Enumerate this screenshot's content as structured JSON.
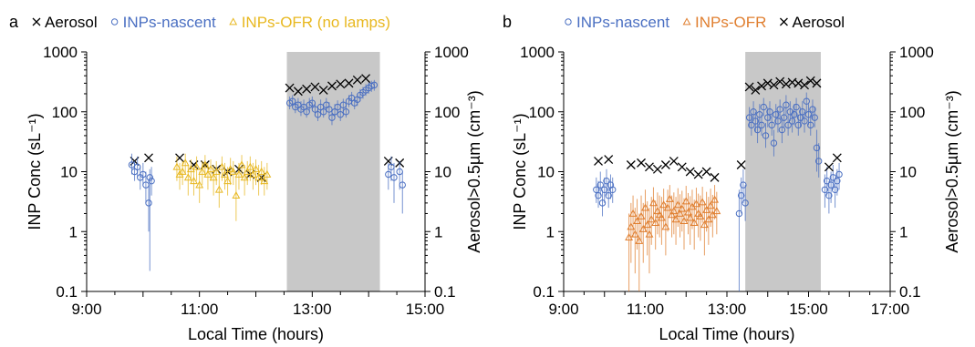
{
  "chart_data": [
    {
      "type": "scatter",
      "panel_label": "a",
      "xlabel": "Local Time (hours)",
      "ylabel": "INP Conc (sL⁻¹)",
      "ylabel_right": "Aerosol>0.5µm (cm⁻³)",
      "xlim": [
        9,
        15
      ],
      "x_ticks": [
        9,
        11,
        13,
        15
      ],
      "x_tick_labels": [
        "9:00",
        "11:00",
        "13:00",
        "15:00"
      ],
      "ylim": [
        0.1,
        1000
      ],
      "y_scale": "log",
      "y_tick_labels": [
        "0.1",
        "1",
        "10",
        "100",
        "1000"
      ],
      "y_ticks": [
        0.1,
        1,
        10,
        100,
        1000
      ],
      "y_right_ticks": [
        0.1,
        1,
        10,
        100,
        1000
      ],
      "y_right_tick_labels": [
        "0.1",
        "1",
        "10",
        "100",
        "1000"
      ],
      "shaded_region": [
        12.55,
        14.2
      ],
      "legend_placement": "top",
      "series": [
        {
          "name": "Aerosol",
          "marker": "x",
          "color": "#000000",
          "x": [
            9.85,
            10.1,
            10.65,
            10.9,
            11.1,
            11.3,
            11.5,
            11.7,
            11.9,
            12.1,
            12.6,
            12.75,
            12.9,
            13.05,
            13.2,
            13.35,
            13.5,
            13.65,
            13.8,
            13.95,
            14.35,
            14.55
          ],
          "y": [
            15,
            17,
            17,
            13,
            13,
            11,
            10,
            11,
            9,
            8,
            250,
            220,
            240,
            260,
            230,
            270,
            290,
            300,
            340,
            360,
            15,
            14
          ]
        },
        {
          "name": "INPs-nascent",
          "marker": "circle",
          "color": "#4a6fc2",
          "x": [
            9.8,
            9.85,
            9.9,
            9.95,
            10.0,
            10.05,
            10.1,
            10.12,
            10.15,
            12.6,
            12.65,
            12.7,
            12.75,
            12.8,
            12.85,
            12.9,
            12.95,
            13.0,
            13.05,
            13.1,
            13.15,
            13.2,
            13.25,
            13.3,
            13.35,
            13.4,
            13.45,
            13.5,
            13.55,
            13.6,
            13.65,
            13.7,
            13.75,
            13.8,
            13.85,
            13.9,
            13.95,
            14.0,
            14.05,
            14.1,
            14.35,
            14.4,
            14.45,
            14.55,
            14.6
          ],
          "y": [
            13,
            10,
            12,
            8,
            9,
            6,
            3,
            8,
            7,
            140,
            150,
            120,
            130,
            110,
            120,
            100,
            130,
            140,
            110,
            90,
            120,
            100,
            130,
            110,
            80,
            100,
            120,
            90,
            130,
            100,
            150,
            170,
            140,
            160,
            190,
            210,
            230,
            250,
            270,
            280,
            9,
            12,
            8,
            10,
            6
          ],
          "err_low": [
            9,
            7,
            8,
            5,
            6,
            3,
            1,
            0.22,
            4,
            110,
            120,
            95,
            105,
            85,
            95,
            80,
            100,
            110,
            85,
            70,
            95,
            80,
            100,
            85,
            60,
            80,
            95,
            70,
            100,
            80,
            120,
            130,
            110,
            125,
            150,
            165,
            185,
            200,
            215,
            225,
            5,
            7,
            3,
            5,
            2
          ],
          "err_high": [
            20,
            15,
            18,
            12,
            14,
            10,
            6,
            11,
            12,
            180,
            190,
            160,
            170,
            150,
            160,
            135,
            170,
            180,
            145,
            120,
            160,
            135,
            170,
            145,
            110,
            135,
            155,
            120,
            165,
            130,
            190,
            215,
            180,
            200,
            240,
            260,
            290,
            310,
            330,
            340,
            14,
            18,
            14,
            15,
            10
          ]
        },
        {
          "name": "INPs-OFR (no lamps)",
          "marker": "triangle",
          "color": "#e8b820",
          "x": [
            10.6,
            10.65,
            10.7,
            10.75,
            10.8,
            10.85,
            10.9,
            10.95,
            11.0,
            11.05,
            11.1,
            11.15,
            11.2,
            11.25,
            11.3,
            11.35,
            11.4,
            11.45,
            11.5,
            11.55,
            11.6,
            11.65,
            11.7,
            11.75,
            11.8,
            11.85,
            11.9,
            11.95,
            12.0,
            12.05,
            12.1,
            12.15,
            12.2
          ],
          "y": [
            12,
            9,
            10,
            14,
            8,
            11,
            7,
            12,
            6,
            10,
            13,
            9,
            11,
            8,
            10,
            5,
            12,
            9,
            7,
            11,
            10,
            4,
            9,
            13,
            8,
            10,
            12,
            9,
            11,
            8,
            10,
            7,
            9
          ],
          "err_low": [
            7,
            5,
            6,
            9,
            4,
            7,
            4,
            7,
            3,
            6,
            8,
            5,
            7,
            4,
            6,
            2.5,
            7,
            5,
            4,
            6,
            6,
            1.5,
            5,
            8,
            4,
            6,
            7,
            5,
            6,
            4,
            6,
            4,
            5
          ],
          "err_high": [
            18,
            14,
            15,
            20,
            13,
            16,
            12,
            18,
            10,
            15,
            19,
            14,
            16,
            13,
            15,
            9,
            18,
            14,
            12,
            17,
            15,
            8,
            14,
            19,
            13,
            15,
            18,
            14,
            16,
            13,
            15,
            12,
            14
          ]
        }
      ]
    },
    {
      "type": "scatter",
      "panel_label": "b",
      "xlabel": "Local Time (hours)",
      "ylabel": "INP Conc (sL⁻¹)",
      "ylabel_right": "Aerosol>0.5µm (cm⁻³)",
      "xlim": [
        9,
        17
      ],
      "x_ticks": [
        9,
        11,
        13,
        15,
        17
      ],
      "x_tick_labels": [
        "9:00",
        "11:00",
        "13:00",
        "15:00",
        "17:00"
      ],
      "ylim": [
        0.1,
        1000
      ],
      "y_scale": "log",
      "y_tick_labels": [
        "0.1",
        "1",
        "10",
        "100",
        "1000"
      ],
      "y_ticks": [
        0.1,
        1,
        10,
        100,
        1000
      ],
      "y_right_ticks": [
        0.1,
        1,
        10,
        100,
        1000
      ],
      "y_right_tick_labels": [
        "0.1",
        "1",
        "10",
        "100",
        "1000"
      ],
      "shaded_region": [
        13.45,
        15.3
      ],
      "legend_placement": "top",
      "series": [
        {
          "name": "INPs-nascent",
          "marker": "circle",
          "color": "#4a6fc2",
          "x": [
            9.8,
            9.85,
            9.9,
            9.95,
            10.0,
            10.05,
            10.1,
            10.15,
            10.2,
            13.3,
            13.35,
            13.4,
            13.45,
            13.55,
            13.6,
            13.65,
            13.7,
            13.75,
            13.8,
            13.85,
            13.9,
            13.95,
            14.0,
            14.05,
            14.1,
            14.15,
            14.2,
            14.25,
            14.3,
            14.35,
            14.4,
            14.45,
            14.5,
            14.55,
            14.6,
            14.65,
            14.7,
            14.75,
            14.8,
            14.85,
            14.9,
            14.95,
            15.0,
            15.05,
            15.1,
            15.15,
            15.2,
            15.25,
            15.4,
            15.45,
            15.5,
            15.55,
            15.6,
            15.65,
            15.7,
            15.75
          ],
          "y": [
            5,
            4,
            6,
            3,
            5,
            7,
            4,
            6,
            5,
            2,
            4,
            6,
            3,
            80,
            60,
            100,
            70,
            50,
            90,
            60,
            120,
            40,
            80,
            100,
            60,
            30,
            90,
            70,
            110,
            50,
            80,
            130,
            60,
            100,
            70,
            90,
            120,
            60,
            80,
            100,
            70,
            150,
            90,
            60,
            110,
            80,
            25,
            15,
            5,
            7,
            4,
            6,
            8,
            5,
            7,
            9
          ],
          "err_low": [
            3,
            2.5,
            4,
            1.8,
            3,
            4,
            2.5,
            3.5,
            3,
            0.1,
            2,
            3,
            1.5,
            55,
            40,
            70,
            45,
            30,
            60,
            40,
            85,
            25,
            55,
            70,
            40,
            18,
            60,
            45,
            75,
            30,
            55,
            90,
            40,
            70,
            45,
            60,
            85,
            40,
            55,
            70,
            45,
            100,
            60,
            40,
            75,
            55,
            10,
            8,
            2.5,
            4,
            2,
            3,
            5,
            2.5,
            4,
            5
          ],
          "err_high": [
            8,
            7,
            10,
            5,
            8,
            11,
            7,
            9,
            8,
            5,
            8,
            11,
            6,
            120,
            90,
            150,
            100,
            80,
            135,
            90,
            170,
            65,
            120,
            150,
            90,
            50,
            135,
            105,
            160,
            80,
            120,
            190,
            90,
            150,
            105,
            135,
            170,
            90,
            120,
            150,
            100,
            210,
            135,
            90,
            160,
            120,
            50,
            30,
            9,
            12,
            7,
            10,
            13,
            8,
            11,
            14
          ]
        },
        {
          "name": "INPs-OFR",
          "marker": "triangle",
          "color": "#e07f30",
          "x": [
            10.6,
            10.65,
            10.7,
            10.75,
            10.8,
            10.85,
            10.9,
            10.95,
            11.0,
            11.05,
            11.1,
            11.15,
            11.2,
            11.25,
            11.3,
            11.35,
            11.4,
            11.45,
            11.5,
            11.55,
            11.6,
            11.65,
            11.7,
            11.75,
            11.8,
            11.85,
            11.9,
            11.95,
            12.0,
            12.05,
            12.1,
            12.15,
            12.2,
            12.25,
            12.3,
            12.35,
            12.4,
            12.45,
            12.5,
            12.55,
            12.6,
            12.65,
            12.7,
            12.75
          ],
          "y": [
            0.8,
            1.2,
            2,
            0.9,
            1.5,
            0.7,
            1.8,
            1.1,
            2.5,
            1.3,
            0.9,
            1.6,
            3,
            1.4,
            2.2,
            1.9,
            1.7,
            2.8,
            1.2,
            2.5,
            3.5,
            1.9,
            2.2,
            1.6,
            2.8,
            2.0,
            2.4,
            1.5,
            3.2,
            2.1,
            1.7,
            2.6,
            1.4,
            2.9,
            2.0,
            1.8,
            3.1,
            1.3,
            2.3,
            1.6,
            2.7,
            1.9,
            3.4,
            2.2
          ],
          "err_low": [
            0.1,
            0.3,
            0.8,
            0.2,
            0.5,
            0.1,
            0.7,
            0.3,
            1.0,
            0.4,
            0.2,
            0.6,
            1.5,
            0.5,
            0.9,
            0.8,
            0.6,
            1.2,
            0.4,
            1.0,
            1.8,
            0.8,
            0.9,
            0.6,
            1.2,
            0.8,
            1.0,
            0.5,
            1.5,
            0.9,
            0.6,
            1.1,
            0.5,
            1.3,
            0.8,
            0.7,
            1.4,
            0.4,
            1.0,
            0.6,
            1.2,
            0.8,
            1.6,
            0.9
          ],
          "err_high": [
            2,
            3,
            4,
            2.5,
            3.5,
            2,
            4,
            3,
            5,
            3.2,
            2.5,
            3.8,
            5.5,
            3.3,
            4.5,
            4,
            3.8,
            5.2,
            3,
            5,
            6,
            4,
            4.5,
            3.8,
            5.3,
            4.2,
            4.8,
            3.6,
            5.8,
            4.4,
            3.9,
            5,
            3.4,
            5.4,
            4.3,
            4,
            5.6,
            3.2,
            4.6,
            3.8,
            5.2,
            4.1,
            6,
            4.6
          ]
        },
        {
          "name": "Aerosol",
          "marker": "x",
          "color": "#000000",
          "x": [
            9.85,
            10.1,
            10.65,
            10.9,
            11.1,
            11.3,
            11.5,
            11.7,
            11.9,
            12.1,
            12.3,
            12.5,
            12.7,
            13.35,
            13.55,
            13.7,
            13.85,
            14.0,
            14.15,
            14.3,
            14.45,
            14.6,
            14.75,
            14.9,
            15.05,
            15.2,
            15.5,
            15.7
          ],
          "y": [
            15,
            16,
            13,
            14,
            12,
            11,
            13,
            15,
            12,
            10,
            9,
            10,
            8,
            13,
            260,
            230,
            270,
            300,
            280,
            320,
            290,
            310,
            300,
            280,
            330,
            300,
            12,
            17
          ]
        }
      ]
    }
  ]
}
